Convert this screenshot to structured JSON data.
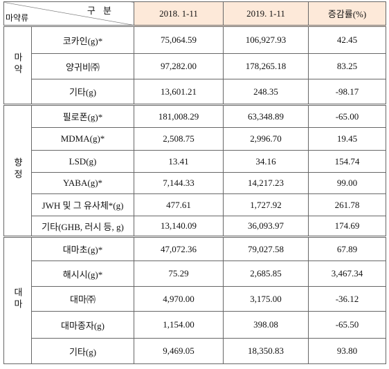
{
  "header": {
    "corner_top": "구 분",
    "corner_bottom": "마약류",
    "columns": [
      "2018. 1-11",
      "2019. 1-11",
      "증감률(%)"
    ]
  },
  "groups": [
    {
      "label": "마약",
      "rows": [
        [
          "코카인(g)*",
          "75,064.59",
          "106,927.93",
          "42.45"
        ],
        [
          "양귀비㈜",
          "97,282.00",
          "178,265.18",
          "83.25"
        ],
        [
          "기타(g)",
          "13,601.21",
          "248.35",
          "-98.17"
        ]
      ]
    },
    {
      "label": "향정",
      "rows": [
        [
          "필로폰(g)*",
          "181,008.29",
          "63,348.89",
          "-65.00"
        ],
        [
          "MDMA(g)*",
          "2,508.75",
          "2,996.70",
          "19.45"
        ],
        [
          "LSD(g)",
          "13.41",
          "34.16",
          "154.74"
        ],
        [
          "YABA(g)*",
          "7,144.33",
          "14,217.23",
          "99.00"
        ],
        [
          "JWH 및 그 유사체*(g)",
          "477.61",
          "1,727.92",
          "261.78"
        ],
        [
          "기타(GHB, 러시 등, g)",
          "13,140.09",
          "36,093.97",
          "174.69"
        ]
      ]
    },
    {
      "label": "대마",
      "rows": [
        [
          "대마초(g)*",
          "47,072.36",
          "79,027.58",
          "67.89"
        ],
        [
          "해시시(g)*",
          "75.29",
          "2,685.85",
          "3,467.34"
        ],
        [
          "대마㈜",
          "4,970.00",
          "3,175.00",
          "-36.12"
        ],
        [
          "대마종자(g)",
          "1,154.00",
          "398.08",
          "-65.50"
        ],
        [
          "기타(g)",
          "9,469.05",
          "18,350.83",
          "93.80"
        ]
      ]
    }
  ]
}
